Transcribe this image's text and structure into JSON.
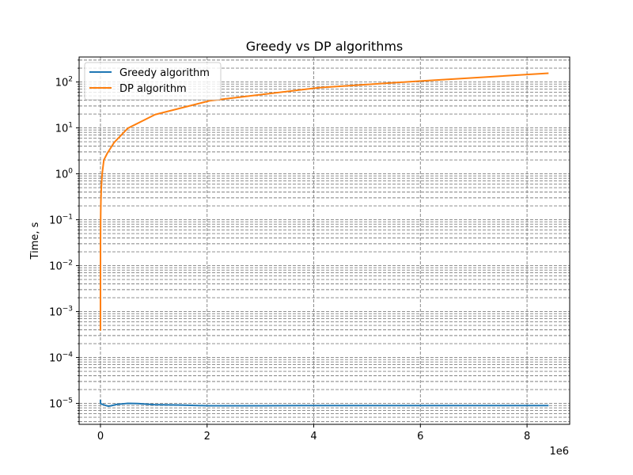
{
  "chart_data": {
    "type": "line",
    "title": "Greedy vs DP algorithms",
    "xlabel": "",
    "ylabel": "Time, s",
    "x_offset_label": "1e6",
    "x_scale": "linear",
    "y_scale": "log",
    "xlim": [
      -400000,
      8800000
    ],
    "ylim": [
      3.5e-06,
      350
    ],
    "x_ticks": [
      0,
      2,
      4,
      6,
      8
    ],
    "x_tick_labels": [
      "0",
      "2",
      "4",
      "6",
      "8"
    ],
    "y_ticks": [
      1e-05,
      0.0001,
      0.001,
      0.01,
      0.1,
      1,
      10,
      100
    ],
    "y_tick_labels": [
      {
        "base": "10",
        "exp": "−5"
      },
      {
        "base": "10",
        "exp": "−4"
      },
      {
        "base": "10",
        "exp": "−3"
      },
      {
        "base": "10",
        "exp": "−2"
      },
      {
        "base": "10",
        "exp": "−1"
      },
      {
        "base": "10",
        "exp": "0"
      },
      {
        "base": "10",
        "exp": "1"
      },
      {
        "base": "10",
        "exp": "2"
      }
    ],
    "grid": "both",
    "legend_position": "top-left",
    "series": [
      {
        "name": "Greedy algorithm",
        "color": "#1f77b4",
        "x": [
          1,
          10,
          100,
          1000,
          10000,
          50000,
          100000,
          150000,
          200000,
          300000,
          500000,
          700000,
          1000000,
          1500000,
          2000000,
          3000000,
          4000000,
          5000000,
          6000000,
          7000000,
          8000000,
          8388608
        ],
        "y": [
          1.15e-05,
          1.08e-05,
          1.05e-05,
          1.02e-05,
          9.8e-06,
          9.4e-06,
          9e-06,
          8.7e-06,
          8.9e-06,
          9.5e-06,
          1e-05,
          9.9e-06,
          9.4e-06,
          9.2e-06,
          8.9e-06,
          8.9e-06,
          9e-06,
          9e-06,
          9e-06,
          9e-06,
          9e-06,
          9e-06
        ]
      },
      {
        "name": "DP algorithm",
        "color": "#ff7f0e",
        "x": [
          1,
          1000,
          4000,
          8000,
          16000,
          32000,
          64000,
          128000,
          256000,
          512000,
          1024000,
          2048000,
          4096000,
          6000000,
          8388608
        ],
        "y": [
          0.0004,
          0.03,
          0.12,
          0.25,
          0.5,
          1.0,
          2.0,
          2.8,
          4.8,
          9.8,
          19.5,
          39,
          75,
          105,
          155
        ]
      }
    ]
  }
}
